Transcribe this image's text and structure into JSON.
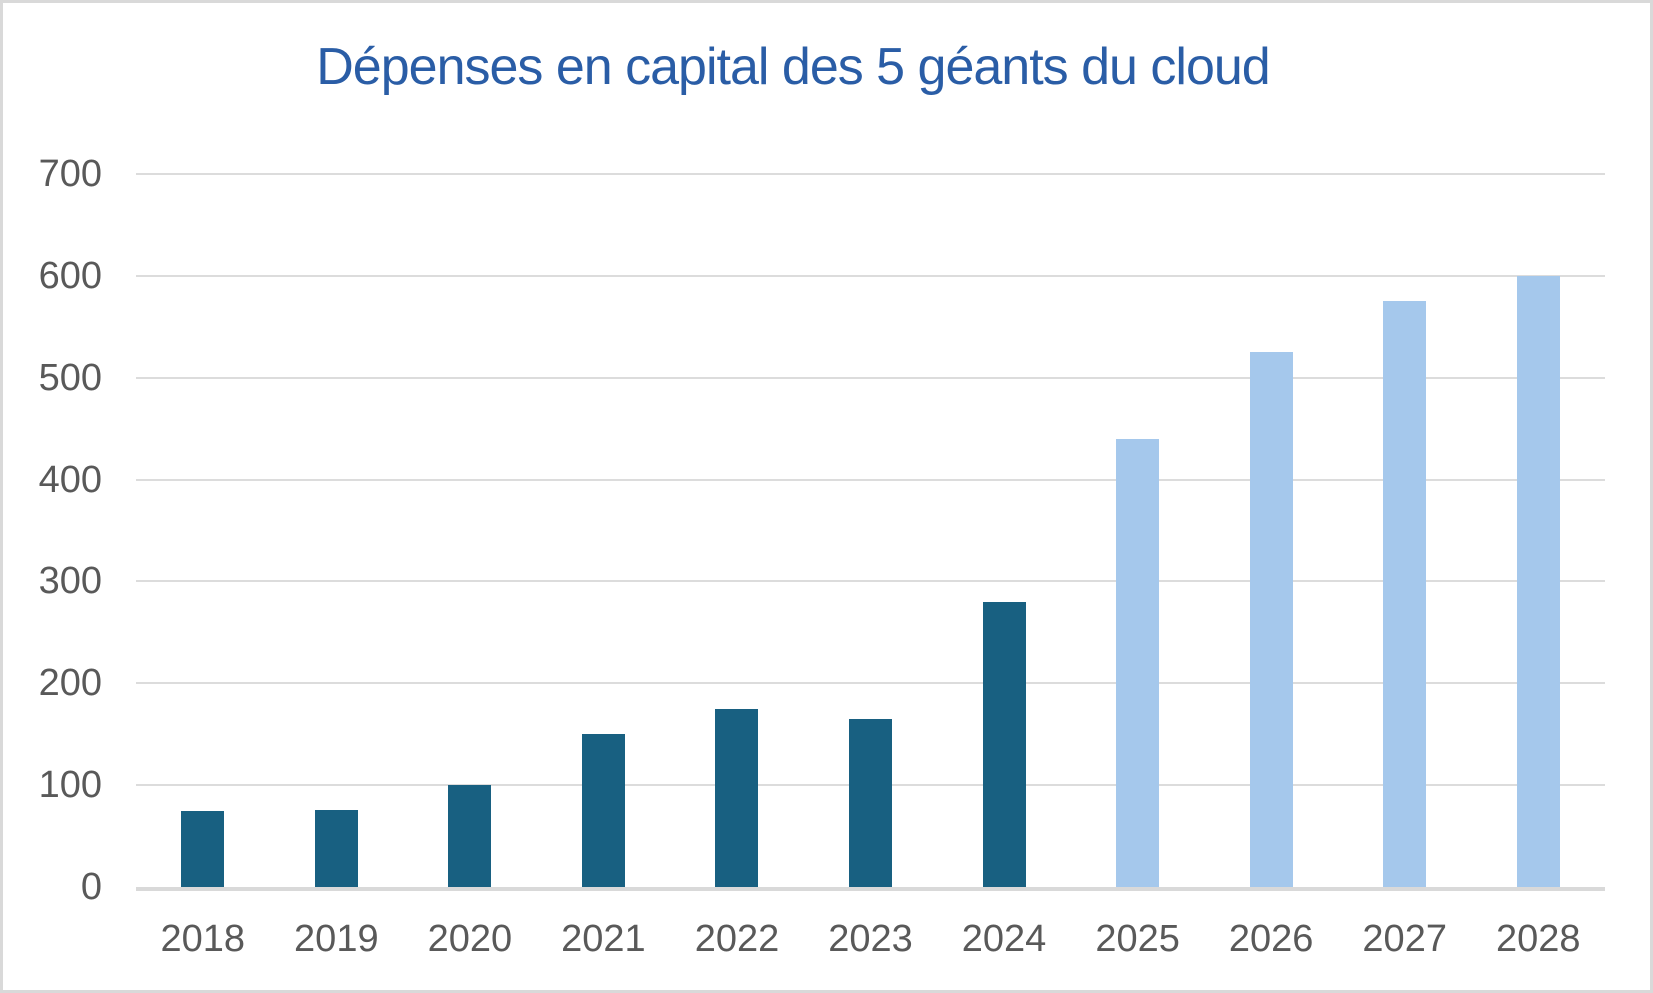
{
  "chart_data": {
    "type": "bar",
    "title": "Dépenses en capital des 5 géants du cloud",
    "categories": [
      "2018",
      "2019",
      "2020",
      "2021",
      "2022",
      "2023",
      "2024",
      "2025",
      "2026",
      "2027",
      "2028"
    ],
    "values": [
      75,
      76,
      100,
      150,
      175,
      165,
      280,
      440,
      525,
      575,
      600
    ],
    "bar_styles": [
      "actual",
      "actual",
      "actual",
      "actual",
      "actual",
      "actual",
      "actual",
      "forecast",
      "forecast",
      "forecast",
      "forecast"
    ],
    "xlabel": "",
    "ylabel": "",
    "ylim": [
      0,
      700
    ],
    "yticks": [
      0,
      100,
      200,
      300,
      400,
      500,
      600,
      700
    ],
    "grid": true,
    "legend": false,
    "colors": {
      "actual": "#186081",
      "forecast": "#A5C8EC",
      "title": "#2A5DA6",
      "axis_text": "#595959",
      "gridline": "#DCDCDC"
    }
  }
}
